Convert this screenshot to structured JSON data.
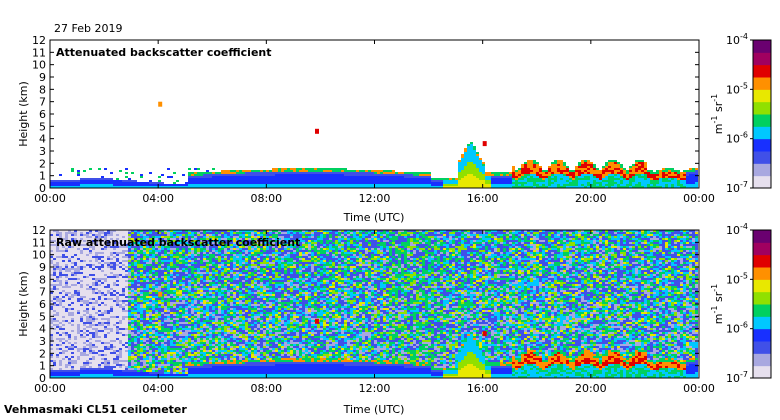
{
  "date": "27 Feb 2019",
  "footer": "Vehmasmaki CL51 ceilometer",
  "colors": {
    "palette": [
      "#e6e0ee",
      "#a8a8e0",
      "#4050e8",
      "#1830ff",
      "#00c8ff",
      "#00d060",
      "#90e000",
      "#e8e800",
      "#ff9000",
      "#e00000",
      "#a00060",
      "#6a0070"
    ],
    "background": "#ffffff"
  },
  "chart_data": [
    {
      "type": "heatmap",
      "title": "Attenuated backscatter coefficient",
      "xlabel": "Time (UTC)",
      "ylabel": "Height (km)",
      "x_ticks": [
        "00:00",
        "04:00",
        "08:00",
        "12:00",
        "16:00",
        "20:00",
        "00:00"
      ],
      "y_ticks": [
        "0",
        "1",
        "2",
        "3",
        "4",
        "5",
        "6",
        "7",
        "8",
        "9",
        "10",
        "11",
        "12"
      ],
      "xlim_hours": [
        0,
        24
      ],
      "ylim_km": [
        0,
        12
      ],
      "colorbar": {
        "scale": "log",
        "range": [
          1e-07,
          0.0001
        ],
        "tick_base": [
          "10",
          "10",
          "10",
          "10"
        ],
        "tick_exp": [
          "-7",
          "-6",
          "-5",
          "-4"
        ],
        "unit_main": "m",
        "unit_exp1": "-1",
        "unit_sr": " sr",
        "unit_exp2": "-1"
      }
    },
    {
      "type": "heatmap",
      "title": "Raw attenuated backscatter coefficient",
      "xlabel": "Time (UTC)",
      "ylabel": "Height (km)",
      "x_ticks": [
        "00:00",
        "04:00",
        "08:00",
        "12:00",
        "16:00",
        "20:00",
        "00:00"
      ],
      "y_ticks": [
        "0",
        "1",
        "2",
        "3",
        "4",
        "5",
        "6",
        "7",
        "8",
        "9",
        "10",
        "11",
        "12"
      ],
      "xlim_hours": [
        0,
        24
      ],
      "ylim_km": [
        0,
        12
      ],
      "colorbar": {
        "scale": "log",
        "range": [
          1e-07,
          0.0001
        ],
        "tick_base": [
          "10",
          "10",
          "10",
          "10"
        ],
        "tick_exp": [
          "-7",
          "-6",
          "-5",
          "-4"
        ],
        "unit_main": "m",
        "unit_exp1": "-1",
        "unit_sr": " sr",
        "unit_exp2": "-1"
      }
    }
  ]
}
